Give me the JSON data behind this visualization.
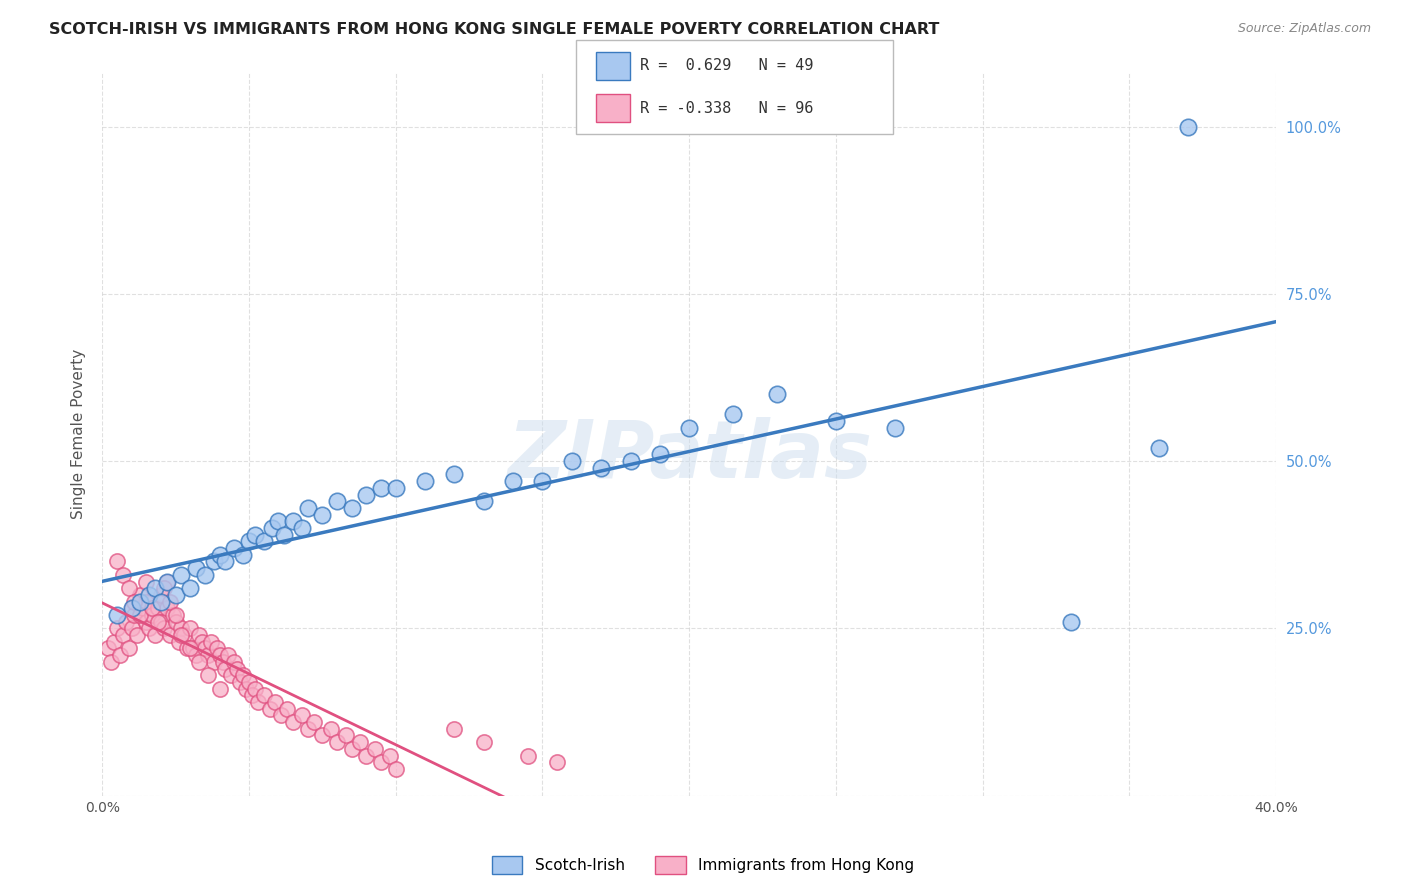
{
  "title": "SCOTCH-IRISH VS IMMIGRANTS FROM HONG KONG SINGLE FEMALE POVERTY CORRELATION CHART",
  "source": "Source: ZipAtlas.com",
  "ylabel": "Single Female Poverty",
  "legend_label1": "Scotch-Irish",
  "legend_label2": "Immigrants from Hong Kong",
  "R1": 0.629,
  "N1": 49,
  "R2": -0.338,
  "N2": 96,
  "color1": "#A8C8F0",
  "color2": "#F8B0C8",
  "line_color1": "#3A7ABF",
  "line_color2": "#E05080",
  "watermark": "ZIPatlas",
  "xmin": 0.0,
  "xmax": 0.4,
  "ymin": 0.0,
  "ymax": 1.08,
  "ytick_positions": [
    0.0,
    0.25,
    0.5,
    0.75,
    1.0
  ],
  "ytick_labels": [
    "",
    "25.0%",
    "50.0%",
    "75.0%",
    "100.0%"
  ],
  "background_color": "#FFFFFF",
  "grid_color": "#CCCCCC",
  "title_color": "#222222",
  "axis_label_color": "#555555",
  "right_tick_color": "#5599DD",
  "scotch_irish_x": [
    0.005,
    0.01,
    0.013,
    0.016,
    0.018,
    0.02,
    0.022,
    0.025,
    0.027,
    0.03,
    0.032,
    0.035,
    0.038,
    0.04,
    0.042,
    0.045,
    0.048,
    0.05,
    0.052,
    0.055,
    0.058,
    0.06,
    0.062,
    0.065,
    0.068,
    0.07,
    0.075,
    0.08,
    0.085,
    0.09,
    0.095,
    0.1,
    0.11,
    0.12,
    0.13,
    0.14,
    0.15,
    0.16,
    0.17,
    0.18,
    0.19,
    0.2,
    0.215,
    0.23,
    0.25,
    0.27,
    0.33,
    0.36,
    0.37
  ],
  "scotch_irish_y": [
    0.27,
    0.28,
    0.29,
    0.3,
    0.31,
    0.29,
    0.32,
    0.3,
    0.33,
    0.31,
    0.34,
    0.33,
    0.35,
    0.36,
    0.35,
    0.37,
    0.36,
    0.38,
    0.39,
    0.38,
    0.4,
    0.41,
    0.39,
    0.41,
    0.4,
    0.43,
    0.42,
    0.44,
    0.43,
    0.45,
    0.46,
    0.46,
    0.47,
    0.48,
    0.44,
    0.47,
    0.47,
    0.5,
    0.49,
    0.5,
    0.51,
    0.55,
    0.57,
    0.6,
    0.56,
    0.55,
    0.26,
    0.52,
    1.0
  ],
  "hk_x": [
    0.002,
    0.003,
    0.004,
    0.005,
    0.006,
    0.007,
    0.008,
    0.009,
    0.01,
    0.01,
    0.011,
    0.012,
    0.013,
    0.014,
    0.015,
    0.015,
    0.016,
    0.017,
    0.018,
    0.019,
    0.02,
    0.02,
    0.021,
    0.022,
    0.022,
    0.023,
    0.024,
    0.025,
    0.026,
    0.027,
    0.028,
    0.029,
    0.03,
    0.031,
    0.032,
    0.033,
    0.034,
    0.035,
    0.036,
    0.037,
    0.038,
    0.039,
    0.04,
    0.041,
    0.042,
    0.043,
    0.044,
    0.045,
    0.046,
    0.047,
    0.048,
    0.049,
    0.05,
    0.051,
    0.052,
    0.053,
    0.055,
    0.057,
    0.059,
    0.061,
    0.063,
    0.065,
    0.068,
    0.07,
    0.072,
    0.075,
    0.078,
    0.08,
    0.083,
    0.085,
    0.088,
    0.09,
    0.093,
    0.095,
    0.098,
    0.1,
    0.005,
    0.007,
    0.009,
    0.011,
    0.013,
    0.015,
    0.017,
    0.019,
    0.021,
    0.023,
    0.025,
    0.027,
    0.03,
    0.033,
    0.036,
    0.04,
    0.12,
    0.13,
    0.145,
    0.155
  ],
  "hk_y": [
    0.22,
    0.2,
    0.23,
    0.25,
    0.21,
    0.24,
    0.26,
    0.22,
    0.25,
    0.28,
    0.27,
    0.24,
    0.3,
    0.28,
    0.26,
    0.29,
    0.25,
    0.27,
    0.24,
    0.28,
    0.26,
    0.3,
    0.25,
    0.28,
    0.32,
    0.24,
    0.27,
    0.26,
    0.23,
    0.25,
    0.24,
    0.22,
    0.25,
    0.22,
    0.21,
    0.24,
    0.23,
    0.22,
    0.21,
    0.23,
    0.2,
    0.22,
    0.21,
    0.2,
    0.19,
    0.21,
    0.18,
    0.2,
    0.19,
    0.17,
    0.18,
    0.16,
    0.17,
    0.15,
    0.16,
    0.14,
    0.15,
    0.13,
    0.14,
    0.12,
    0.13,
    0.11,
    0.12,
    0.1,
    0.11,
    0.09,
    0.1,
    0.08,
    0.09,
    0.07,
    0.08,
    0.06,
    0.07,
    0.05,
    0.06,
    0.04,
    0.35,
    0.33,
    0.31,
    0.29,
    0.27,
    0.32,
    0.28,
    0.26,
    0.31,
    0.29,
    0.27,
    0.24,
    0.22,
    0.2,
    0.18,
    0.16,
    0.1,
    0.08,
    0.06,
    0.05
  ]
}
